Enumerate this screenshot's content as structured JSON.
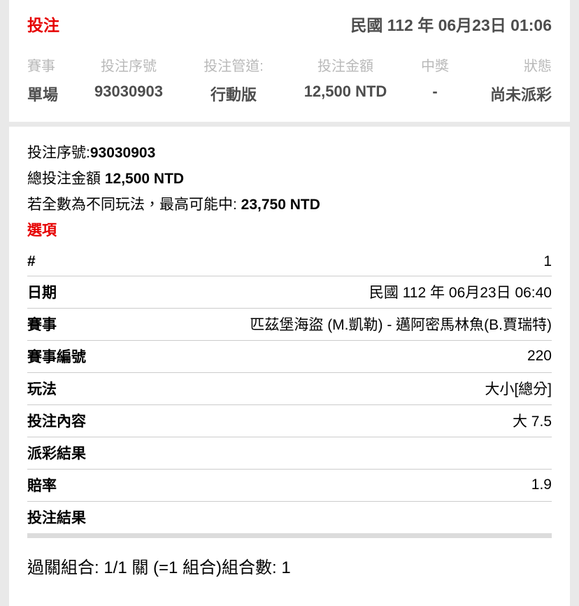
{
  "colors": {
    "accent_red": "#e60000",
    "summary_value_text": "#4d4d4d",
    "muted_label": "#b9b9b9",
    "body_text": "#000000",
    "row_border": "#cccccc",
    "thick_divider": "#dcdcdc",
    "page_background": "#e9e9e9",
    "card_background": "#ffffff"
  },
  "summary_card": {
    "title": "投注",
    "datetime": "民國 112 年 06月23日 01:06",
    "columns": [
      {
        "label": "賽事",
        "value": "單場"
      },
      {
        "label": "投注序號",
        "value": "93030903"
      },
      {
        "label": "投注管道:",
        "value": "行動版"
      },
      {
        "label": "投注金額",
        "value": "12,500 NTD"
      },
      {
        "label": "中獎",
        "value": "-"
      },
      {
        "label": "狀態",
        "value": "尚未派彩"
      }
    ]
  },
  "detail_card": {
    "serial_label": "投注序號:",
    "serial_value": "93030903",
    "total_label": "總投注金額 ",
    "total_value": "12,500 NTD",
    "max_win_label": "若全數為不同玩法，最高可能中: ",
    "max_win_value": "23,750 NTD",
    "options_title": "選項",
    "rows": [
      {
        "label": "#",
        "value": "1"
      },
      {
        "label": "日期",
        "value": "民國 112 年 06月23日 06:40"
      },
      {
        "label": "賽事",
        "value": "匹茲堡海盜 (M.凱勒) - 邁阿密馬林魚(B.賈瑞特)"
      },
      {
        "label": "賽事編號",
        "value": "220"
      },
      {
        "label": "玩法",
        "value": "大小[總分]"
      },
      {
        "label": "投注內容",
        "value": "大 7.5"
      },
      {
        "label": "派彩結果",
        "value": ""
      },
      {
        "label": "賠率",
        "value": "1.9"
      },
      {
        "label": "投注結果",
        "value": ""
      }
    ],
    "footer": "過關組合: 1/1 關 (=1 組合)組合數: 1"
  }
}
